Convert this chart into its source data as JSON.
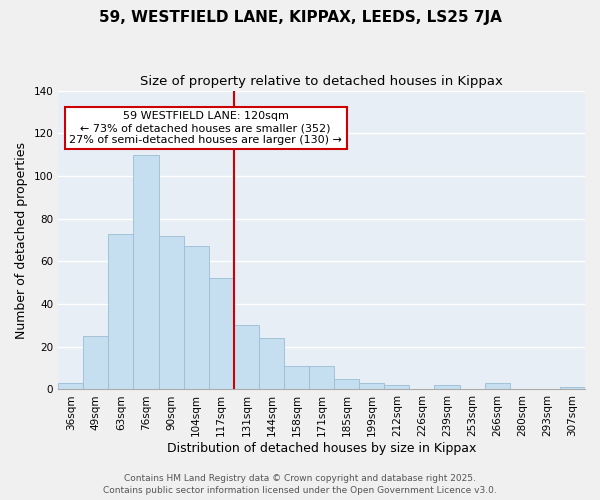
{
  "title": "59, WESTFIELD LANE, KIPPAX, LEEDS, LS25 7JA",
  "subtitle": "Size of property relative to detached houses in Kippax",
  "xlabel": "Distribution of detached houses by size in Kippax",
  "ylabel": "Number of detached properties",
  "bar_labels": [
    "36sqm",
    "49sqm",
    "63sqm",
    "76sqm",
    "90sqm",
    "104sqm",
    "117sqm",
    "131sqm",
    "144sqm",
    "158sqm",
    "171sqm",
    "185sqm",
    "199sqm",
    "212sqm",
    "226sqm",
    "239sqm",
    "253sqm",
    "266sqm",
    "280sqm",
    "293sqm",
    "307sqm"
  ],
  "bar_values": [
    3,
    25,
    73,
    110,
    72,
    67,
    52,
    30,
    24,
    11,
    11,
    5,
    3,
    2,
    0,
    2,
    0,
    3,
    0,
    0,
    1
  ],
  "bar_color": "#c6dff0",
  "bar_edge_color": "#9bbdd4",
  "background_color": "#f0f0f0",
  "plot_bg_color": "#e8eef5",
  "grid_color": "#ffffff",
  "ylim": [
    0,
    140
  ],
  "yticks": [
    0,
    20,
    40,
    60,
    80,
    100,
    120,
    140
  ],
  "vline_x": 6.5,
  "vline_color": "#cc0000",
  "annotation_title": "59 WESTFIELD LANE: 120sqm",
  "annotation_line1": "← 73% of detached houses are smaller (352)",
  "annotation_line2": "27% of semi-detached houses are larger (130) →",
  "annotation_box_color": "#ffffff",
  "annotation_box_edge": "#cc0000",
  "footer_line1": "Contains HM Land Registry data © Crown copyright and database right 2025.",
  "footer_line2": "Contains public sector information licensed under the Open Government Licence v3.0.",
  "title_fontsize": 11,
  "subtitle_fontsize": 9.5,
  "axis_label_fontsize": 9,
  "tick_fontsize": 7.5,
  "annotation_fontsize": 8,
  "footer_fontsize": 6.5
}
